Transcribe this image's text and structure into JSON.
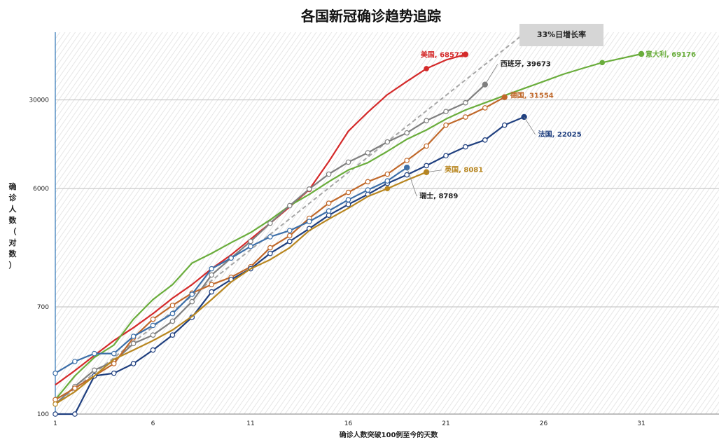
{
  "chart_data": {
    "type": "line",
    "title": "各国新冠确诊趋势追踪",
    "xlabel": "确诊人数突破100例至今的天数",
    "ylabel": "确诊人数（对数）",
    "y_scale": "log",
    "xlim": [
      1,
      35
    ],
    "ylim": [
      100,
      100000
    ],
    "x_ticks": [
      1,
      6,
      11,
      16,
      21,
      26,
      31
    ],
    "y_ticks": [
      100,
      700,
      6000,
      30000
    ],
    "grid": "horizontal",
    "reference_line": {
      "label": "33%日增长率",
      "x": [
        1,
        25
      ],
      "y": [
        120,
        100000
      ],
      "color": "#a6a6a6"
    },
    "series": [
      {
        "name": "美国",
        "label": "美国, 68572",
        "color": "#d42a2a",
        "marked_points": [
          14,
          20,
          22
        ],
        "x": [
          1,
          2,
          3,
          4,
          5,
          6,
          7,
          8,
          9,
          10,
          11,
          12,
          13,
          14,
          15,
          16,
          17,
          18,
          19,
          20,
          21,
          22
        ],
        "y": [
          170,
          220,
          290,
          380,
          480,
          620,
          820,
          1050,
          1400,
          1800,
          2400,
          3200,
          4300,
          5900,
          9800,
          17000,
          24000,
          33000,
          42000,
          53000,
          62000,
          68572
        ]
      },
      {
        "name": "意大利",
        "label": "意大利, 69176",
        "color": "#6aad3c",
        "marked_points": [
          29,
          31
        ],
        "x": [
          1,
          2,
          3,
          4,
          5,
          6,
          7,
          8,
          9,
          10,
          11,
          12,
          13,
          14,
          15,
          16,
          17,
          18,
          19,
          20,
          21,
          22,
          23,
          24,
          25,
          26,
          27,
          28,
          29,
          30,
          31
        ],
        "y": [
          130,
          200,
          280,
          350,
          560,
          800,
          1050,
          1550,
          1850,
          2250,
          2700,
          3400,
          4400,
          5400,
          6800,
          8400,
          9600,
          11800,
          14700,
          17400,
          21200,
          25000,
          28500,
          32500,
          37000,
          42000,
          47800,
          53300,
          59100,
          63900,
          69176
        ]
      },
      {
        "name": "西班牙",
        "label": "西班牙, 39673",
        "color": "#7f7f7f",
        "marked_points": [
          2,
          3,
          4,
          5,
          6,
          7,
          8,
          9,
          10,
          11,
          12,
          13,
          14,
          15,
          16,
          17,
          18,
          19,
          20,
          21,
          22,
          23
        ],
        "x": [
          1,
          2,
          3,
          4,
          5,
          6,
          7,
          8,
          9,
          10,
          11,
          12,
          13,
          14,
          15,
          16,
          17,
          18,
          19,
          20,
          21,
          22,
          23
        ],
        "y": [
          120,
          165,
          222,
          260,
          360,
          420,
          540,
          770,
          1250,
          1700,
          2300,
          3200,
          4400,
          5950,
          7800,
          9700,
          11500,
          14000,
          16500,
          20600,
          24300,
          28500,
          39673
        ]
      },
      {
        "name": "德国",
        "label": "德国, 31554",
        "color": "#c0682a",
        "marked_points": [
          1,
          2,
          3,
          4,
          5,
          6,
          7,
          8,
          9,
          10,
          11,
          12,
          13,
          14,
          15,
          16,
          17,
          18,
          19,
          20,
          21,
          22,
          23,
          24
        ],
        "x": [
          1,
          2,
          3,
          4,
          5,
          6,
          7,
          8,
          9,
          10,
          11,
          12,
          13,
          14,
          15,
          16,
          17,
          18,
          19,
          20,
          21,
          22,
          23,
          24
        ],
        "y": [
          130,
          160,
          200,
          250,
          400,
          560,
          720,
          900,
          1050,
          1200,
          1450,
          2050,
          2550,
          3500,
          4600,
          5600,
          6800,
          7800,
          10000,
          13000,
          19000,
          22000,
          26000,
          31554
        ]
      },
      {
        "name": "法国",
        "label": "法国, 22025",
        "color": "#1f3f7f",
        "marked_points": [
          1,
          2,
          3,
          4,
          5,
          6,
          7,
          8,
          9,
          10,
          11,
          12,
          13,
          14,
          15,
          16,
          17,
          18,
          19,
          20,
          21,
          22,
          23,
          24,
          25
        ],
        "x": [
          1,
          2,
          3,
          4,
          5,
          6,
          7,
          8,
          9,
          10,
          11,
          12,
          13,
          14,
          15,
          16,
          17,
          18,
          19,
          20,
          21,
          22,
          23,
          24,
          25
        ],
        "y": [
          100,
          100,
          200,
          210,
          250,
          320,
          420,
          580,
          920,
          1150,
          1400,
          1850,
          2300,
          2900,
          3700,
          4500,
          5400,
          6600,
          7700,
          9100,
          10900,
          12800,
          14500,
          19000,
          22025
        ]
      },
      {
        "name": "瑞士",
        "label": "瑞士, 8789",
        "color": "#3b6ea8",
        "marked_points": [
          1,
          2,
          3,
          4,
          5,
          6,
          7,
          8,
          9,
          10,
          11,
          12,
          13,
          14,
          15,
          16,
          17,
          18,
          19
        ],
        "x": [
          1,
          2,
          3,
          4,
          5,
          6,
          7,
          8,
          9,
          10,
          11,
          12,
          13,
          14,
          15,
          16,
          17,
          18,
          19
        ],
        "y": [
          210,
          260,
          300,
          300,
          410,
          500,
          620,
          880,
          1400,
          1700,
          2100,
          2500,
          2800,
          3300,
          4000,
          4900,
          5850,
          6900,
          8789
        ]
      },
      {
        "name": "英国",
        "label": "英国, 8081",
        "color": "#b8861f",
        "marked_points": [
          1,
          18,
          20
        ],
        "x": [
          1,
          2,
          3,
          4,
          5,
          6,
          7,
          8,
          9,
          10,
          11,
          12,
          13,
          14,
          15,
          16,
          17,
          18,
          19,
          20
        ],
        "y": [
          120,
          150,
          200,
          270,
          320,
          380,
          460,
          590,
          800,
          1100,
          1400,
          1650,
          2050,
          2800,
          3450,
          4200,
          5200,
          6000,
          7000,
          8081
        ]
      }
    ]
  }
}
